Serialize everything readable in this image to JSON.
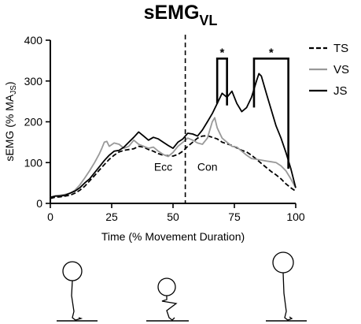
{
  "title": {
    "main": "sEMG",
    "sub": "VL"
  },
  "chart_data": {
    "type": "line",
    "xlabel": "Time (% Movement Duration)",
    "ylabel": {
      "main": "sEMG (% MA",
      "sub": "JS",
      "end": ")"
    },
    "xlim": [
      0,
      100
    ],
    "ylim": [
      0,
      400
    ],
    "xticks": [
      "0",
      "25",
      "50",
      "75",
      "100"
    ],
    "yticks": [
      "0",
      "100",
      "200",
      "300",
      "400"
    ],
    "grid": false,
    "legend_position": "top-right",
    "phase_divider_x": 55,
    "phase_labels": [
      {
        "text": "Ecc",
        "x": 46,
        "y": 90
      },
      {
        "text": "Con",
        "x": 64,
        "y": 90
      }
    ],
    "significance": [
      {
        "label": "*",
        "x_start": 68,
        "x_end": 72,
        "y": 355
      },
      {
        "label": "*",
        "x_start": 83,
        "x_end": 97,
        "y": 355
      }
    ],
    "series": [
      {
        "name": "TS",
        "color": "#000000",
        "dash": "dashed",
        "x": [
          0,
          2,
          4,
          6,
          8,
          10,
          12,
          14,
          16,
          18,
          20,
          22,
          24,
          26,
          28,
          30,
          32,
          34,
          36,
          38,
          40,
          42,
          44,
          46,
          48,
          50,
          52,
          54,
          56,
          58,
          60,
          62,
          64,
          66,
          68,
          70,
          72,
          74,
          76,
          78,
          80,
          82,
          84,
          86,
          88,
          90,
          92,
          94,
          96,
          98,
          100
        ],
        "y": [
          12,
          15,
          16,
          18,
          20,
          25,
          32,
          42,
          55,
          68,
          82,
          95,
          108,
          118,
          126,
          130,
          132,
          134,
          140,
          138,
          132,
          128,
          122,
          118,
          117,
          116,
          120,
          128,
          140,
          150,
          160,
          165,
          166,
          162,
          158,
          150,
          146,
          142,
          136,
          130,
          126,
          118,
          108,
          98,
          88,
          78,
          70,
          60,
          48,
          38,
          30
        ]
      },
      {
        "name": "VS",
        "color": "#999999",
        "dash": "solid",
        "x": [
          0,
          2,
          4,
          6,
          8,
          10,
          12,
          14,
          16,
          18,
          20,
          21,
          22,
          23,
          24,
          26,
          28,
          30,
          32,
          34,
          36,
          38,
          40,
          42,
          44,
          46,
          48,
          50,
          52,
          54,
          56,
          58,
          60,
          62,
          64,
          66,
          67,
          68,
          70,
          72,
          74,
          76,
          78,
          80,
          82,
          84,
          86,
          88,
          90,
          92,
          94,
          96,
          98,
          100
        ],
        "y": [
          15,
          18,
          20,
          22,
          25,
          32,
          45,
          62,
          80,
          100,
          122,
          135,
          150,
          152,
          140,
          148,
          145,
          135,
          140,
          155,
          145,
          140,
          135,
          138,
          128,
          120,
          115,
          125,
          140,
          150,
          160,
          155,
          148,
          145,
          160,
          200,
          210,
          185,
          160,
          150,
          140,
          138,
          128,
          118,
          110,
          108,
          106,
          104,
          102,
          100,
          92,
          80,
          60,
          38
        ]
      },
      {
        "name": "JS",
        "color": "#000000",
        "dash": "solid",
        "x": [
          0,
          2,
          4,
          6,
          8,
          10,
          12,
          14,
          16,
          18,
          20,
          22,
          24,
          26,
          28,
          30,
          32,
          34,
          36,
          38,
          40,
          42,
          44,
          46,
          48,
          50,
          52,
          54,
          56,
          58,
          60,
          62,
          64,
          66,
          68,
          70,
          72,
          74,
          76,
          78,
          80,
          82,
          84,
          85,
          86,
          88,
          90,
          92,
          94,
          96,
          98,
          100
        ],
        "y": [
          15,
          18,
          18,
          20,
          25,
          30,
          38,
          50,
          60,
          75,
          90,
          105,
          118,
          128,
          130,
          138,
          150,
          162,
          175,
          165,
          155,
          162,
          158,
          150,
          142,
          135,
          150,
          158,
          172,
          170,
          165,
          180,
          200,
          220,
          245,
          270,
          260,
          275,
          245,
          225,
          235,
          260,
          300,
          318,
          312,
          270,
          230,
          190,
          160,
          125,
          85,
          38
        ]
      }
    ]
  }
}
